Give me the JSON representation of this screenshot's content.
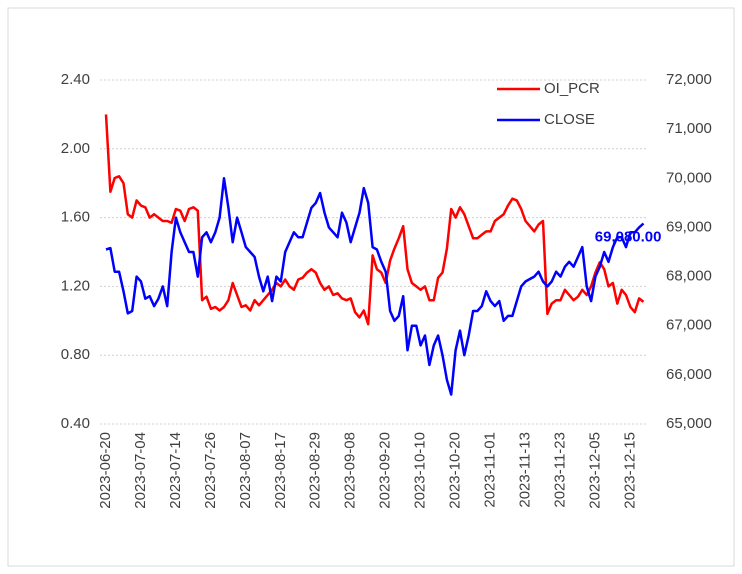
{
  "chart_data": {
    "type": "line",
    "categories": [
      "2023-06-20",
      null,
      null,
      null,
      null,
      null,
      null,
      null,
      "2023-07-04",
      null,
      null,
      null,
      null,
      null,
      null,
      null,
      "2023-07-14",
      null,
      null,
      null,
      null,
      null,
      null,
      null,
      "2023-07-26",
      null,
      null,
      null,
      null,
      null,
      null,
      null,
      "2023-08-07",
      null,
      null,
      null,
      null,
      null,
      null,
      null,
      "2023-08-17",
      null,
      null,
      null,
      null,
      null,
      null,
      null,
      "2023-08-29",
      null,
      null,
      null,
      null,
      null,
      null,
      null,
      "2023-09-08",
      null,
      null,
      null,
      null,
      null,
      null,
      null,
      "2023-09-20",
      null,
      null,
      null,
      null,
      null,
      null,
      null,
      "2023-10-10",
      null,
      null,
      null,
      null,
      null,
      null,
      null,
      "2023-10-20",
      null,
      null,
      null,
      null,
      null,
      null,
      null,
      "2023-11-01",
      null,
      null,
      null,
      null,
      null,
      null,
      null,
      "2023-11-13",
      null,
      null,
      null,
      null,
      null,
      null,
      null,
      "2023-11-23",
      null,
      null,
      null,
      null,
      null,
      null,
      null,
      "2023-12-05",
      null,
      null,
      null,
      null,
      null,
      null,
      null,
      "2023-12-15",
      null,
      null,
      null
    ],
    "series": [
      {
        "name": "OI_PCR",
        "color": "#ff0000",
        "axis": "y",
        "values": [
          2.2,
          1.75,
          1.83,
          1.84,
          1.8,
          1.62,
          1.6,
          1.7,
          1.67,
          1.66,
          1.6,
          1.62,
          1.6,
          1.58,
          1.58,
          1.57,
          1.65,
          1.64,
          1.58,
          1.65,
          1.66,
          1.64,
          1.12,
          1.14,
          1.07,
          1.08,
          1.06,
          1.08,
          1.12,
          1.22,
          1.15,
          1.08,
          1.09,
          1.06,
          1.12,
          1.09,
          1.12,
          1.15,
          1.18,
          1.22,
          1.2,
          1.24,
          1.2,
          1.18,
          1.24,
          1.25,
          1.28,
          1.3,
          1.28,
          1.22,
          1.18,
          1.2,
          1.15,
          1.16,
          1.13,
          1.12,
          1.13,
          1.05,
          1.02,
          1.06,
          0.98,
          1.38,
          1.3,
          1.28,
          1.22,
          1.35,
          1.42,
          1.48,
          1.55,
          1.3,
          1.22,
          1.2,
          1.18,
          1.2,
          1.12,
          1.12,
          1.25,
          1.28,
          1.42,
          1.65,
          1.6,
          1.66,
          1.62,
          1.55,
          1.48,
          1.48,
          1.5,
          1.52,
          1.52,
          1.58,
          1.6,
          1.62,
          1.67,
          1.71,
          1.7,
          1.65,
          1.58,
          1.55,
          1.52,
          1.56,
          1.58,
          1.04,
          1.1,
          1.12,
          1.12,
          1.18,
          1.15,
          1.12,
          1.14,
          1.18,
          1.15,
          1.2,
          1.28,
          1.34,
          1.3,
          1.2,
          1.22,
          1.1,
          1.18,
          1.15,
          1.08,
          1.05,
          1.13,
          1.11
        ]
      },
      {
        "name": "CLOSE",
        "color": "#0000ff",
        "axis": "y2",
        "values": [
          68550,
          68580,
          68100,
          68100,
          67700,
          67250,
          67300,
          68000,
          67900,
          67550,
          67600,
          67400,
          67550,
          67800,
          67400,
          68500,
          69200,
          68900,
          68700,
          68500,
          68500,
          68000,
          68800,
          68900,
          68700,
          68900,
          69200,
          70000,
          69400,
          68700,
          69200,
          68900,
          68600,
          68500,
          68400,
          68000,
          67700,
          68000,
          67500,
          68000,
          67900,
          68500,
          68700,
          68900,
          68800,
          68800,
          69100,
          69400,
          69500,
          69700,
          69300,
          69000,
          68900,
          68800,
          69300,
          69100,
          68700,
          69000,
          69300,
          69800,
          69500,
          68600,
          68550,
          68300,
          68100,
          67300,
          67100,
          67200,
          67600,
          66500,
          67000,
          67000,
          66600,
          66800,
          66200,
          66600,
          66800,
          66400,
          65900,
          65600,
          66500,
          66900,
          66400,
          66800,
          67300,
          67300,
          67400,
          67700,
          67500,
          67400,
          67500,
          67100,
          67200,
          67200,
          67500,
          67800,
          67900,
          67950,
          68000,
          68100,
          67900,
          67800,
          67900,
          68100,
          68000,
          68200,
          68300,
          68200,
          68400,
          68600,
          67800,
          67500,
          68000,
          68200,
          68500,
          68300,
          68600,
          68800,
          68800,
          68600,
          68900,
          68900,
          69000,
          69080
        ],
        "value_labels": [
          null,
          null,
          null,
          null,
          null,
          null,
          null,
          null,
          null,
          null,
          null,
          null,
          null,
          null,
          null,
          null,
          null,
          null,
          null,
          null,
          null,
          null,
          null,
          null,
          null,
          null,
          null,
          null,
          null,
          null,
          null,
          null,
          null,
          null,
          null,
          null,
          null,
          null,
          null,
          null,
          null,
          null,
          null,
          null,
          null,
          null,
          null,
          null,
          null,
          null,
          null,
          null,
          null,
          null,
          null,
          null,
          null,
          null,
          null,
          null,
          null,
          null,
          null,
          null,
          null,
          null,
          null,
          null,
          null,
          null,
          null,
          null,
          null,
          null,
          null,
          null,
          null,
          null,
          null,
          null,
          null,
          null,
          null,
          null,
          null,
          null,
          null,
          null,
          null,
          null,
          null,
          null,
          null,
          null,
          null,
          null,
          null,
          null,
          null,
          null,
          null,
          null,
          null,
          null,
          null,
          null,
          null,
          null,
          null,
          null,
          null,
          null,
          null,
          null,
          null,
          null,
          null,
          null,
          null,
          null,
          null,
          null,
          null,
          "69,080.00"
        ]
      }
    ],
    "ylim": [
      0.4,
      2.4
    ],
    "yticks": [
      {
        "value": 0.4,
        "label": "0.40"
      },
      {
        "value": 0.8,
        "label": "0.80"
      },
      {
        "value": 1.2,
        "label": "1.20"
      },
      {
        "value": 1.6,
        "label": "1.60"
      },
      {
        "value": 2.0,
        "label": "2.00"
      },
      {
        "value": 2.4,
        "label": "2.40"
      }
    ],
    "y2lim": [
      65000,
      72000
    ],
    "y2ticks": [
      {
        "value": 65000,
        "label": "65,000"
      },
      {
        "value": 66000,
        "label": "66,000"
      },
      {
        "value": 67000,
        "label": "67,000"
      },
      {
        "value": 68000,
        "label": "68,000"
      },
      {
        "value": 69000,
        "label": "69,000"
      },
      {
        "value": 70000,
        "label": "70,000"
      },
      {
        "value": 71000,
        "label": "71,000"
      },
      {
        "value": 72000,
        "label": "72,000"
      }
    ],
    "grid": true,
    "legend": "top-right"
  }
}
